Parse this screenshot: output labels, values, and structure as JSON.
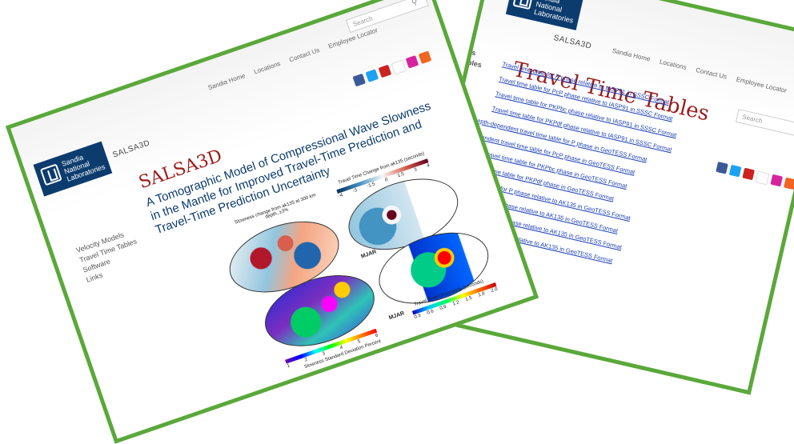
{
  "colors": {
    "frame": "#5aa83a",
    "logo_bg": "#0c3c6e",
    "title_red": "#9b1b1b",
    "link_blue": "#1a3fb5",
    "subtitle_blue": "#0c3c6e"
  },
  "logo": {
    "line1": "Sandia",
    "line2": "National",
    "line3": "Laboratories"
  },
  "nav": {
    "site_name": "SALSA3D",
    "items": [
      "Sandia Home",
      "Locations",
      "Contact Us",
      "Employee Locator"
    ],
    "search_placeholder": "Search"
  },
  "social_icons": [
    "facebook-icon",
    "twitter-icon",
    "youtube-icon",
    "flickr-icon",
    "instagram-icon",
    "rss-icon"
  ],
  "front_page": {
    "title": "SALSA3D",
    "subtitle": "A Tomographic Model of Compressional Wave Slowness in the Mantle for Improved Travel-Time Prediction and Travel-Time Prediction Uncertainty",
    "sidebar": [
      "Velocity Models",
      "Travel Time Tables",
      "Software",
      "Links"
    ],
    "figure": {
      "map1_title": "Slowness change from ak135 at 300 km depth, ±3%",
      "map2_title": "Travel Time Change from ak135 (seconds)",
      "map2_ticks": [
        "-4",
        "-3",
        "-1.5",
        "0",
        "1.5",
        "3",
        "4"
      ],
      "station_label_1": "MJAR",
      "station_label_2": "MJAR",
      "map4_title": "Travel Time Uncertainty (seconds)",
      "map4_ticks": [
        "0.3",
        "0.6",
        "0.9",
        "1.2",
        "1.5",
        "1.8",
        "2.0"
      ],
      "map3_ticks": [
        "1",
        "2",
        "3",
        "4",
        "5",
        "6"
      ],
      "map3_caption": "Slowness Standard Deviation Percent"
    }
  },
  "back_page": {
    "title": "Travel Time Tables",
    "sidebar_fragments": [
      "els",
      "ables"
    ],
    "links": [
      "Travel time table for P phase relative to IASP91 in SSSC Format",
      "Travel time table for PcP phase relative to IASP91 in SSSC Format",
      "Travel time table for PKPbc phase relative to IASP91 in SSSC Format",
      "Travel time table for PKPdf phase relative to IASP91 in SSSC Format",
      "Depth-dependent travel time table for P phase in GeoTESS Format",
      "-dependent travel time table for PcP phase in GeoTESS Format",
      "endent travel time table for PKPbc phase in GeoTESS Format",
      "t travel time table for PKPdf phase in GeoTESS Format",
      "el time table for P phase relative to AK135 in GeoTESS Format",
      "ble for PcP phase relative to AK135 in GeoTESS Format",
      "ble for PKPbc phase relative to AK135 in GeoTESS Format",
      "e for PKPdf phase relative to AK135 in GeoTESS Format"
    ]
  }
}
